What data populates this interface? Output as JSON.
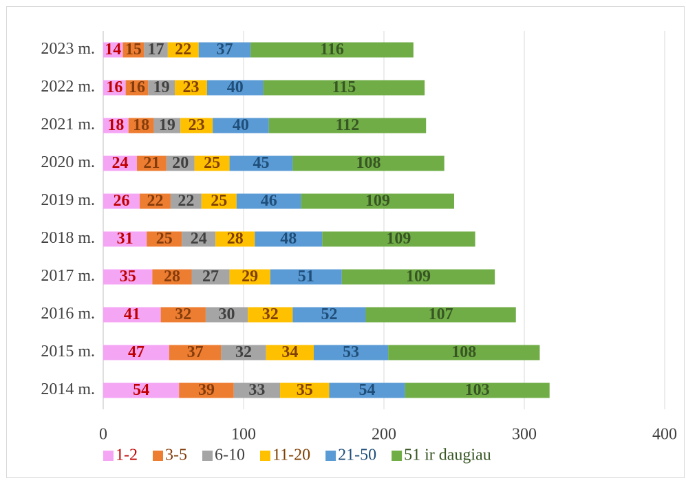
{
  "chart_data": {
    "type": "stacked_bar_horizontal",
    "categories": [
      "2023 m.",
      "2022 m.",
      "2021 m.",
      "2020 m.",
      "2019 m.",
      "2018 m.",
      "2017 m.",
      "2016 m.",
      "2015 m.",
      "2014 m."
    ],
    "series": [
      {
        "name": "1-2",
        "color": "#f4a6f4",
        "label_color": "#c00000",
        "values": [
          14,
          16,
          18,
          24,
          26,
          31,
          35,
          41,
          47,
          54
        ]
      },
      {
        "name": "3-5",
        "color": "#ed7d31",
        "label_color": "#843c0c",
        "values": [
          15,
          16,
          18,
          21,
          22,
          25,
          28,
          32,
          37,
          39
        ]
      },
      {
        "name": "6-10",
        "color": "#a5a5a5",
        "label_color": "#404040",
        "values": [
          17,
          19,
          19,
          20,
          22,
          24,
          27,
          30,
          32,
          33
        ]
      },
      {
        "name": "11-20",
        "color": "#ffc000",
        "label_color": "#7f3f00",
        "values": [
          22,
          23,
          23,
          25,
          25,
          28,
          29,
          32,
          34,
          35
        ]
      },
      {
        "name": "21-50",
        "color": "#5b9bd5",
        "label_color": "#1f4e79",
        "values": [
          37,
          40,
          40,
          45,
          46,
          48,
          51,
          52,
          53,
          54
        ]
      },
      {
        "name": "51 ir daugiau",
        "color": "#70ad47",
        "label_color": "#375623",
        "values": [
          116,
          115,
          112,
          108,
          109,
          109,
          109,
          107,
          108,
          103
        ]
      }
    ],
    "xlim": [
      0,
      400
    ],
    "xticks": [
      0,
      100,
      200,
      300,
      400
    ],
    "grid": true,
    "legend": "bottom"
  }
}
